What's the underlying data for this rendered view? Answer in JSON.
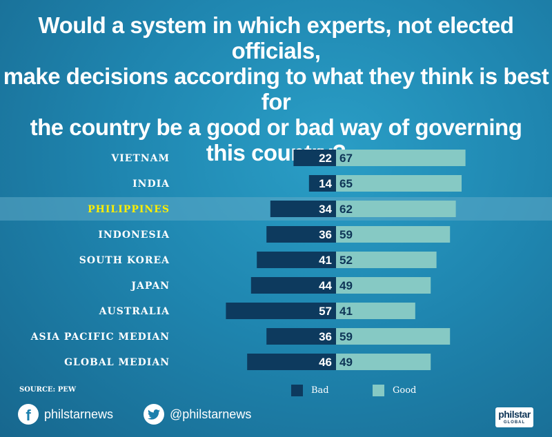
{
  "title_lines": [
    "Would a system in which experts, not elected officials,",
    "make decisions according to what they think is best for",
    "the country be a good or bad way of governing",
    "this country?"
  ],
  "source": "SOURCE: PEW",
  "colors": {
    "bad": "#0d3a5e",
    "good": "#86c9c4",
    "highlight_text": "#ffee00",
    "highlight_band": "#5fa9c6"
  },
  "chart_data": {
    "type": "bar",
    "orientation": "horizontal-diverging",
    "categories": [
      "VIETNAM",
      "INDIA",
      "PHILIPPINES",
      "INDONESIA",
      "SOUTH KOREA",
      "JAPAN",
      "AUSTRALIA",
      "ASIA PACIFIC MEDIAN",
      "GLOBAL MEDIAN"
    ],
    "highlight": "PHILIPPINES",
    "series": [
      {
        "name": "Bad",
        "values": [
          22,
          14,
          34,
          36,
          41,
          44,
          57,
          36,
          46
        ]
      },
      {
        "name": "Good",
        "values": [
          67,
          65,
          62,
          59,
          52,
          49,
          41,
          59,
          49
        ]
      }
    ],
    "legend_position": "bottom"
  },
  "footer": {
    "facebook_icon": "facebook-icon",
    "facebook_handle": "philstarnews",
    "twitter_icon": "twitter-icon",
    "twitter_handle": "@philstarnews",
    "logo_main": "philstar",
    "logo_sub": "GLOBAL"
  }
}
